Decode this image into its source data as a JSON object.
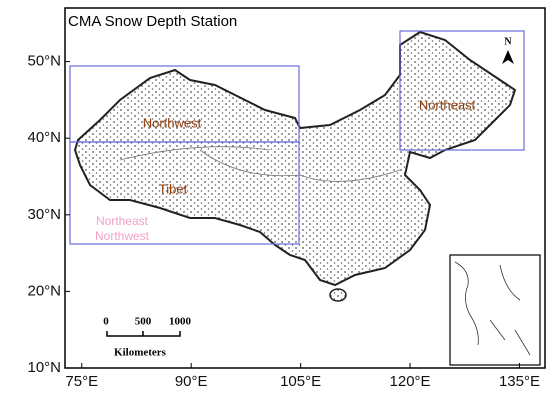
{
  "title": "CMA Snow Depth Station",
  "map": {
    "lonlim": [
      72.7,
      138.5
    ],
    "latlim": [
      10,
      57
    ],
    "lon_ticks": [
      {
        "value": 75,
        "label": "75°E"
      },
      {
        "value": 90,
        "label": "90°E"
      },
      {
        "value": 105,
        "label": "105°E"
      },
      {
        "value": 120,
        "label": "120°E"
      },
      {
        "value": 135,
        "label": "135°E"
      }
    ],
    "lat_ticks": [
      {
        "value": 10,
        "label": "10°N"
      },
      {
        "value": 20,
        "label": "20°N"
      },
      {
        "value": 30,
        "label": "30°N"
      },
      {
        "value": 40,
        "label": "40°N"
      },
      {
        "value": 50,
        "label": "50°N"
      }
    ]
  },
  "regions": [
    "Northwest",
    "Tibet",
    "Northeast"
  ],
  "ghost_labels": [
    "Northeast",
    "Northwest"
  ],
  "scale_bar": {
    "labels": [
      "0",
      "500",
      "1000"
    ],
    "unit": "Kilometers"
  },
  "north_arrow": "N"
}
